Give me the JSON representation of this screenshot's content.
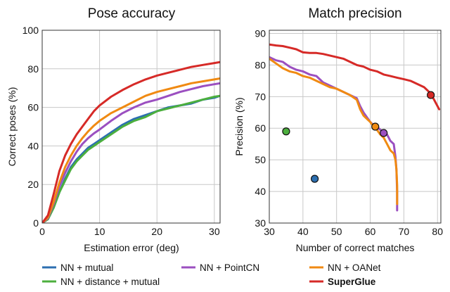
{
  "chart_data": [
    {
      "type": "line",
      "title": "Pose accuracy",
      "xlabel": "Estimation error (deg)",
      "ylabel": "Correct poses (%)",
      "xlim": [
        0,
        31
      ],
      "ylim": [
        0,
        100
      ],
      "xticks": [
        0,
        10,
        20,
        30
      ],
      "yticks": [
        0,
        20,
        40,
        60,
        80,
        100
      ],
      "grid": true,
      "series": [
        {
          "name": "NN + mutual",
          "color": "#2c6fb0",
          "points": [
            [
              0,
              0
            ],
            [
              1,
              2
            ],
            [
              2,
              8
            ],
            [
              3,
              16
            ],
            [
              4,
              23
            ],
            [
              5,
              29
            ],
            [
              6,
              33
            ],
            [
              7,
              36
            ],
            [
              8,
              39
            ],
            [
              9,
              41
            ],
            [
              10,
              43
            ],
            [
              12,
              47
            ],
            [
              14,
              51
            ],
            [
              16,
              54
            ],
            [
              18,
              56
            ],
            [
              20,
              58
            ],
            [
              22,
              60
            ],
            [
              24,
              61
            ],
            [
              26,
              62
            ],
            [
              28,
              64
            ],
            [
              30,
              65
            ],
            [
              31,
              66
            ]
          ]
        },
        {
          "name": "NN + distance + mutual",
          "color": "#4caf3e",
          "points": [
            [
              0,
              0
            ],
            [
              1,
              2
            ],
            [
              2,
              8
            ],
            [
              3,
              16
            ],
            [
              4,
              22
            ],
            [
              5,
              28
            ],
            [
              6,
              32
            ],
            [
              7,
              35
            ],
            [
              8,
              38
            ],
            [
              9,
              40
            ],
            [
              10,
              42
            ],
            [
              12,
              46
            ],
            [
              14,
              50
            ],
            [
              16,
              53
            ],
            [
              18,
              55
            ],
            [
              20,
              58
            ],
            [
              22,
              59.5
            ],
            [
              24,
              61
            ],
            [
              26,
              62.5
            ],
            [
              28,
              64
            ],
            [
              30,
              65.5
            ],
            [
              31,
              66
            ]
          ]
        },
        {
          "name": "NN + PointCN",
          "color": "#9b4fc0",
          "points": [
            [
              0,
              0
            ],
            [
              1,
              2.5
            ],
            [
              2,
              10
            ],
            [
              3,
              19
            ],
            [
              4,
              26
            ],
            [
              5,
              32
            ],
            [
              6,
              37
            ],
            [
              7,
              41
            ],
            [
              8,
              44
            ],
            [
              9,
              46.5
            ],
            [
              10,
              48.5
            ],
            [
              12,
              53
            ],
            [
              14,
              57
            ],
            [
              16,
              60
            ],
            [
              18,
              62.5
            ],
            [
              20,
              64
            ],
            [
              22,
              66
            ],
            [
              24,
              68
            ],
            [
              26,
              69.5
            ],
            [
              28,
              71
            ],
            [
              30,
              72
            ],
            [
              31,
              72.5
            ]
          ]
        },
        {
          "name": "NN + OANet",
          "color": "#f08a12",
          "points": [
            [
              0,
              0
            ],
            [
              1,
              3
            ],
            [
              2,
              11
            ],
            [
              3,
              21
            ],
            [
              4,
              29
            ],
            [
              5,
              35
            ],
            [
              6,
              40
            ],
            [
              7,
              44
            ],
            [
              8,
              47.5
            ],
            [
              9,
              50.5
            ],
            [
              10,
              53
            ],
            [
              12,
              57
            ],
            [
              14,
              60
            ],
            [
              16,
              63
            ],
            [
              18,
              66
            ],
            [
              20,
              68
            ],
            [
              22,
              69.5
            ],
            [
              24,
              71
            ],
            [
              26,
              72.5
            ],
            [
              28,
              73.5
            ],
            [
              30,
              74.5
            ],
            [
              31,
              75
            ]
          ]
        },
        {
          "name": "SuperGlue",
          "color": "#d62a27",
          "points": [
            [
              0,
              0
            ],
            [
              1,
              4
            ],
            [
              2,
              15
            ],
            [
              3,
              27
            ],
            [
              4,
              35
            ],
            [
              5,
              41
            ],
            [
              6,
              46
            ],
            [
              7,
              50
            ],
            [
              8,
              54
            ],
            [
              9,
              58
            ],
            [
              10,
              61
            ],
            [
              12,
              65.5
            ],
            [
              14,
              69
            ],
            [
              16,
              72
            ],
            [
              18,
              74.5
            ],
            [
              20,
              76.5
            ],
            [
              22,
              78
            ],
            [
              24,
              79.5
            ],
            [
              26,
              81
            ],
            [
              28,
              82
            ],
            [
              30,
              83
            ],
            [
              31,
              83.5
            ]
          ]
        }
      ]
    },
    {
      "type": "line",
      "title": "Match precision",
      "xlabel": "Number of correct matches",
      "ylabel": "Precision (%)",
      "xlim": [
        30,
        81
      ],
      "ylim": [
        30,
        91
      ],
      "xticks": [
        30,
        40,
        50,
        60,
        70,
        80
      ],
      "yticks": [
        30,
        40,
        50,
        60,
        70,
        80,
        90
      ],
      "grid": true,
      "series": [
        {
          "name": "NN + PointCN",
          "color": "#9b4fc0",
          "points": [
            [
              30,
              82.5
            ],
            [
              32,
              81.5
            ],
            [
              34,
              81
            ],
            [
              36,
              79.5
            ],
            [
              38,
              78.5
            ],
            [
              40,
              78
            ],
            [
              42,
              77
            ],
            [
              44,
              76.5
            ],
            [
              46,
              74.5
            ],
            [
              48,
              73.5
            ],
            [
              50,
              72.5
            ],
            [
              52,
              71.5
            ],
            [
              54,
              70.5
            ],
            [
              56,
              69.5
            ],
            [
              57,
              67
            ],
            [
              58,
              65
            ],
            [
              59,
              63.5
            ],
            [
              60,
              62
            ],
            [
              61,
              61
            ],
            [
              62,
              60.5
            ],
            [
              63,
              59.5
            ],
            [
              64,
              59
            ],
            [
              65,
              58
            ],
            [
              66,
              56
            ],
            [
              67,
              55
            ],
            [
              67.5,
              51
            ],
            [
              67.8,
              47
            ],
            [
              68,
              40
            ],
            [
              68,
              34
            ]
          ]
        },
        {
          "name": "NN + OANet",
          "color": "#f08a12",
          "points": [
            [
              30,
              82
            ],
            [
              32,
              80.5
            ],
            [
              34,
              79
            ],
            [
              36,
              78
            ],
            [
              38,
              77.5
            ],
            [
              40,
              76.5
            ],
            [
              42,
              76
            ],
            [
              44,
              75
            ],
            [
              46,
              74
            ],
            [
              48,
              73
            ],
            [
              50,
              72.5
            ],
            [
              52,
              71.5
            ],
            [
              54,
              70.5
            ],
            [
              56,
              69
            ],
            [
              57,
              66
            ],
            [
              58,
              64
            ],
            [
              59,
              63
            ],
            [
              60,
              62
            ],
            [
              61,
              60.5
            ],
            [
              62,
              59.5
            ],
            [
              63,
              58
            ],
            [
              64,
              57
            ],
            [
              65,
              55
            ],
            [
              66,
              53
            ],
            [
              67,
              52
            ],
            [
              67.5,
              50
            ],
            [
              67.8,
              47
            ],
            [
              68,
              42
            ],
            [
              68,
              36
            ]
          ]
        },
        {
          "name": "SuperGlue",
          "color": "#d62a27",
          "points": [
            [
              30,
              86.5
            ],
            [
              32,
              86.2
            ],
            [
              34,
              86
            ],
            [
              36,
              85.5
            ],
            [
              38,
              85
            ],
            [
              40,
              84
            ],
            [
              42,
              83.8
            ],
            [
              44,
              83.8
            ],
            [
              46,
              83.5
            ],
            [
              48,
              83
            ],
            [
              50,
              82.5
            ],
            [
              52,
              82
            ],
            [
              54,
              81
            ],
            [
              56,
              80
            ],
            [
              58,
              79.5
            ],
            [
              60,
              78.5
            ],
            [
              62,
              78
            ],
            [
              64,
              77
            ],
            [
              66,
              76.5
            ],
            [
              68,
              76
            ],
            [
              70,
              75.5
            ],
            [
              72,
              75
            ],
            [
              74,
              74
            ],
            [
              76,
              73
            ],
            [
              78,
              71
            ],
            [
              79,
              69
            ],
            [
              80,
              67
            ],
            [
              80.5,
              66
            ]
          ]
        }
      ],
      "points": [
        {
          "name": "NN + mutual",
          "x": 43.5,
          "y": 44,
          "color": "#2c6fb0"
        },
        {
          "name": "NN + distance + mutual",
          "x": 35,
          "y": 59,
          "color": "#4caf3e"
        },
        {
          "name": "NN + PointCN",
          "x": 64,
          "y": 58.5,
          "color": "#9b4fc0"
        },
        {
          "name": "NN + OANet",
          "x": 61.5,
          "y": 60.5,
          "color": "#f08a12"
        },
        {
          "name": "SuperGlue",
          "x": 78,
          "y": 70.5,
          "color": "#d62a27"
        }
      ]
    }
  ],
  "legend": [
    {
      "label": "NN + mutual",
      "color": "#2c6fb0",
      "bold": false
    },
    {
      "label": "NN + PointCN",
      "color": "#9b4fc0",
      "bold": false
    },
    {
      "label": "NN + OANet",
      "color": "#f08a12",
      "bold": false
    },
    {
      "label": "NN + distance + mutual",
      "color": "#4caf3e",
      "bold": false
    },
    {
      "label": "SuperGlue",
      "color": "#d62a27",
      "bold": true
    }
  ]
}
